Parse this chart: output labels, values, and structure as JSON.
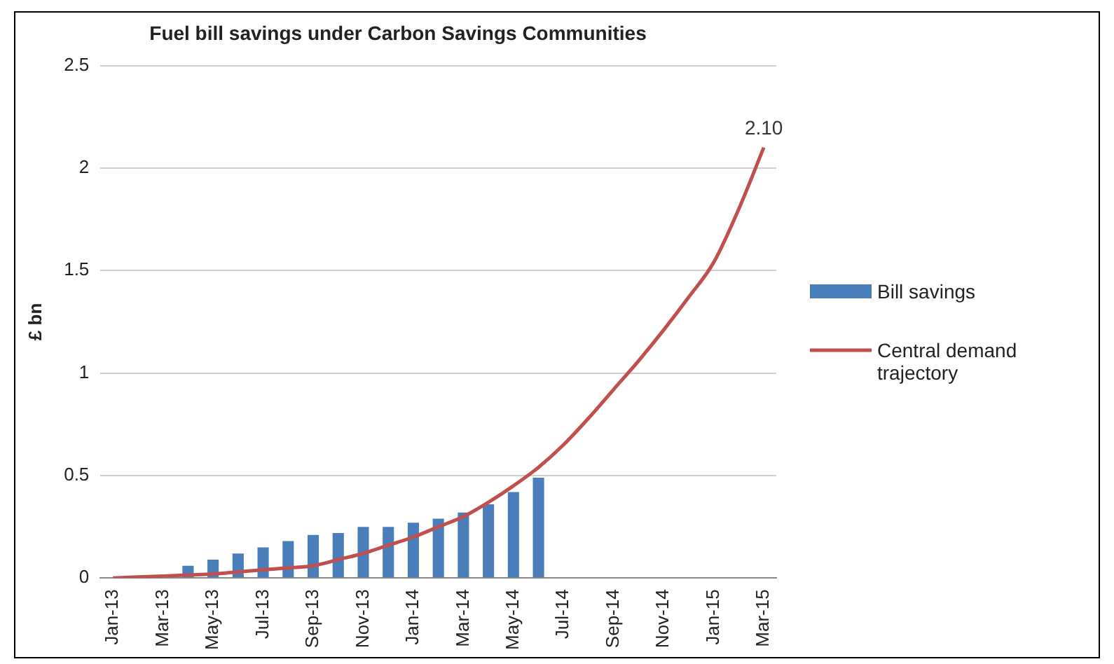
{
  "chart_data": {
    "type": "bar",
    "title": "Fuel bill savings under Carbon Savings Communities",
    "ylabel": "£ bn",
    "categories": [
      "Jan-13",
      null,
      "Mar-13",
      null,
      "May-13",
      null,
      "Jul-13",
      null,
      "Sep-13",
      null,
      "Nov-13",
      null,
      "Jan-14",
      null,
      "Mar-14",
      null,
      "May-14",
      null,
      "Jul-14",
      null,
      "Sep-14",
      null,
      "Nov-14",
      null,
      "Jan-15",
      null,
      "Mar-15"
    ],
    "series": [
      {
        "name": "Bill savings",
        "color": "#4a7ebb",
        "values": [
          null,
          null,
          null,
          0.06,
          0.09,
          0.12,
          0.15,
          0.18,
          0.21,
          0.22,
          0.25,
          0.25,
          0.27,
          0.29,
          0.32,
          0.36,
          0.42,
          0.49,
          null,
          null,
          null,
          null,
          null,
          null,
          null,
          null,
          null
        ]
      },
      {
        "name": "Central demand trajectory",
        "type": "line",
        "color": "#c0504d",
        "values": [
          0,
          0.005,
          0.01,
          0.015,
          0.02,
          0.03,
          0.04,
          0.05,
          0.06,
          0.09,
          0.12,
          0.16,
          0.2,
          0.25,
          0.3,
          0.37,
          0.45,
          0.54,
          0.65,
          0.78,
          0.92,
          1.06,
          1.21,
          1.37,
          1.54,
          1.8,
          2.1
        ],
        "value_labels": [
          null,
          null,
          null,
          null,
          null,
          null,
          null,
          null,
          null,
          null,
          null,
          null,
          null,
          null,
          null,
          null,
          null,
          null,
          null,
          null,
          null,
          null,
          null,
          null,
          null,
          null,
          "2.10"
        ]
      }
    ],
    "ylim": [
      0,
      2.5
    ],
    "yticks": [
      0,
      0.5,
      1,
      1.5,
      2,
      2.5
    ],
    "grid": "y",
    "legend": "right",
    "marker": "none"
  }
}
